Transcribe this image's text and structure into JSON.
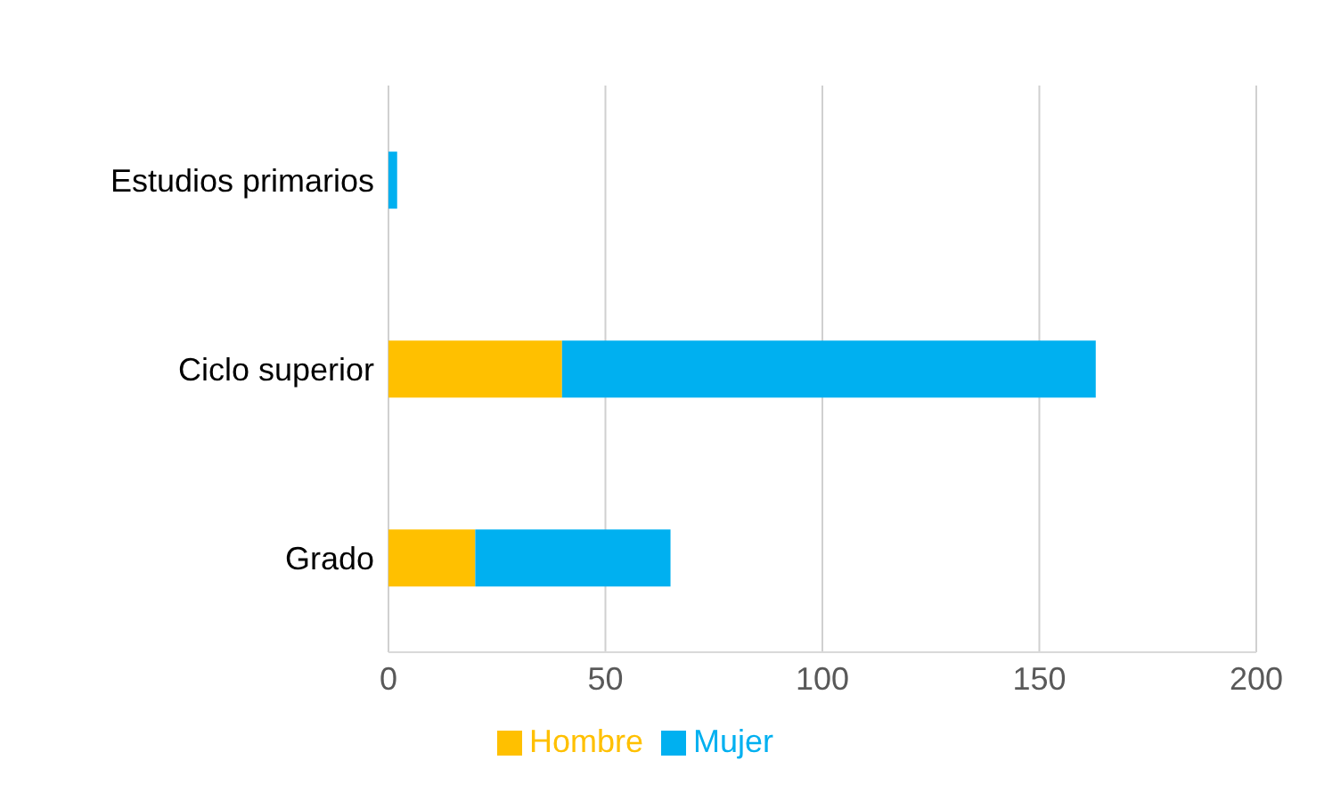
{
  "chart_data": {
    "type": "bar",
    "orientation": "horizontal",
    "stacked": true,
    "categories": [
      "Estudios primarios",
      "Ciclo superior",
      "Grado"
    ],
    "series": [
      {
        "name": "Hombre",
        "color": "#ffc000",
        "values": [
          0,
          40,
          20
        ]
      },
      {
        "name": "Mujer",
        "color": "#00b0f0",
        "values": [
          2,
          123,
          45
        ]
      }
    ],
    "xlim": [
      0,
      200
    ],
    "xticks": [
      0,
      50,
      100,
      150,
      200
    ],
    "grid": "x",
    "legend": "bottom"
  }
}
